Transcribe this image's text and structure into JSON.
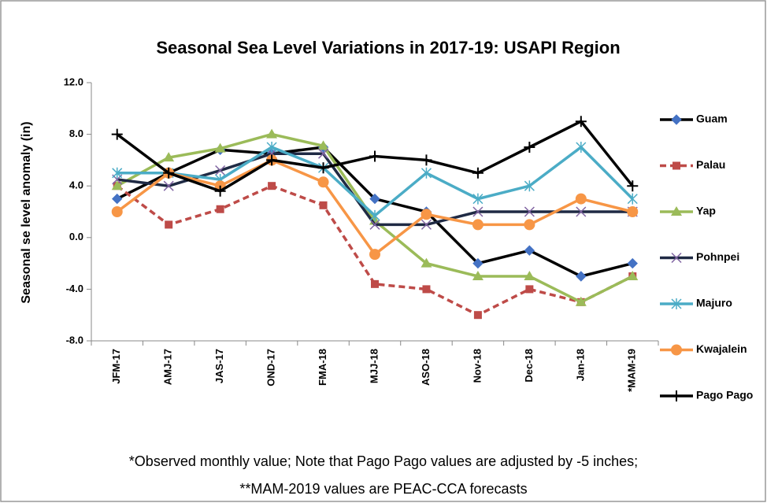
{
  "chart_data": {
    "type": "line",
    "title": "Seasonal Sea Level Variations in 2017-19: USAPI Region",
    "y_label": "Seasonal se level anomaly  (in)",
    "notes": [
      "*Observed monthly value;  Note that Pago Pago values are adjusted by -5 inches;",
      "**MAM-2019 values are PEAC-CCA forecasts"
    ],
    "categories": [
      "JFM-17",
      "AMJ-17",
      "JAS-17",
      "OND-17",
      "FMA-18",
      "MJJ-18",
      "ASO-18",
      "Nov-18",
      "Dec-18",
      "Jan-18",
      "*MAM-19"
    ],
    "ylim": [
      -8,
      12
    ],
    "yticks": [
      {
        "value": -8,
        "label": "-8.0"
      },
      {
        "value": -4,
        "label": "-4.0"
      },
      {
        "value": 0,
        "label": "0.0"
      },
      {
        "value": 4,
        "label": "4.0"
      },
      {
        "value": 8,
        "label": "8.0"
      },
      {
        "value": 12,
        "label": "12.0"
      }
    ],
    "legend": "right",
    "series": [
      {
        "name": "Guam",
        "color": "#000000",
        "marker_color": "#4472c4",
        "marker": "diamond",
        "values": [
          3,
          5,
          6.8,
          6.5,
          7,
          3,
          2,
          -2,
          -1,
          -3,
          -2
        ]
      },
      {
        "name": "Palau",
        "color": "#be4b48",
        "marker_color": "#be4b48",
        "marker": "square",
        "dashed": true,
        "values": [
          4,
          1,
          2.2,
          4,
          2.5,
          -3.6,
          -4,
          -6,
          -4,
          -5,
          -3
        ]
      },
      {
        "name": "Yap",
        "color": "#9bbb59",
        "marker_color": "#9bbb59",
        "marker": "triangle",
        "values": [
          4,
          6.2,
          6.9,
          8,
          7.1,
          1.3,
          -2,
          -3,
          -3,
          -5,
          -3
        ]
      },
      {
        "name": "Pohnpei",
        "color": "#1f2a44",
        "marker_color": "#8064a2",
        "marker": "x",
        "values": [
          4.5,
          4,
          5.2,
          6.5,
          6.5,
          1,
          1,
          2,
          2,
          2,
          2
        ]
      },
      {
        "name": "Majuro",
        "color": "#4bacc6",
        "marker_color": "#4bacc6",
        "marker": "star",
        "values": [
          5,
          5,
          4.5,
          7,
          5.4,
          1.7,
          5,
          3,
          4,
          7,
          3
        ]
      },
      {
        "name": "Kwajalein",
        "color": "#f79646",
        "marker_color": "#f79646",
        "marker": "circle",
        "values": [
          2,
          5,
          4,
          6,
          4.3,
          -1.3,
          1.8,
          1,
          1,
          3,
          2
        ]
      },
      {
        "name": "Pago Pago",
        "color": "#000000",
        "marker_color": "#000000",
        "marker": "plus",
        "values": [
          8,
          5,
          3.6,
          6,
          5.4,
          6.3,
          6,
          5,
          7,
          9,
          4
        ]
      }
    ]
  }
}
